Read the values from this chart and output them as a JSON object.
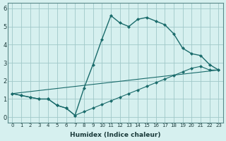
{
  "xlabel": "Humidex (Indice chaleur)",
  "ylabel": "",
  "bg_color": "#d6f0ef",
  "grid_color": "#a0c8c8",
  "line_color": "#1a6b6b",
  "xlim": [
    -0.5,
    23.5
  ],
  "ylim": [
    -0.3,
    6.3
  ],
  "xticks": [
    0,
    1,
    2,
    3,
    4,
    5,
    6,
    7,
    8,
    9,
    10,
    11,
    12,
    13,
    14,
    15,
    16,
    17,
    18,
    19,
    20,
    21,
    22,
    23
  ],
  "yticks": [
    0,
    1,
    2,
    3,
    4,
    5,
    6
  ],
  "line1_x": [
    0,
    1,
    2,
    3,
    4,
    5,
    6,
    7,
    8,
    9,
    10,
    11,
    12,
    13,
    14,
    15,
    16,
    17,
    18,
    19,
    20,
    21,
    22,
    23
  ],
  "line1_y": [
    1.3,
    1.2,
    1.1,
    1.0,
    1.0,
    0.65,
    0.5,
    0.1,
    1.6,
    2.9,
    4.3,
    5.6,
    5.2,
    5.0,
    5.4,
    5.5,
    5.3,
    5.1,
    4.6,
    3.8,
    3.5,
    3.4,
    2.9,
    2.6
  ],
  "line2_x": [
    0,
    1,
    2,
    3,
    4,
    5,
    6,
    7,
    8,
    9,
    10,
    11,
    12,
    13,
    14,
    15,
    16,
    17,
    18,
    19,
    20,
    21,
    22,
    23
  ],
  "line2_y": [
    1.3,
    1.2,
    1.1,
    1.0,
    1.0,
    0.65,
    0.5,
    0.1,
    0.3,
    0.5,
    0.7,
    0.9,
    1.1,
    1.3,
    1.5,
    1.7,
    1.9,
    2.1,
    2.3,
    2.5,
    2.7,
    2.8,
    2.6,
    2.6
  ],
  "line3_x": [
    0,
    23
  ],
  "line3_y": [
    1.3,
    2.6
  ]
}
